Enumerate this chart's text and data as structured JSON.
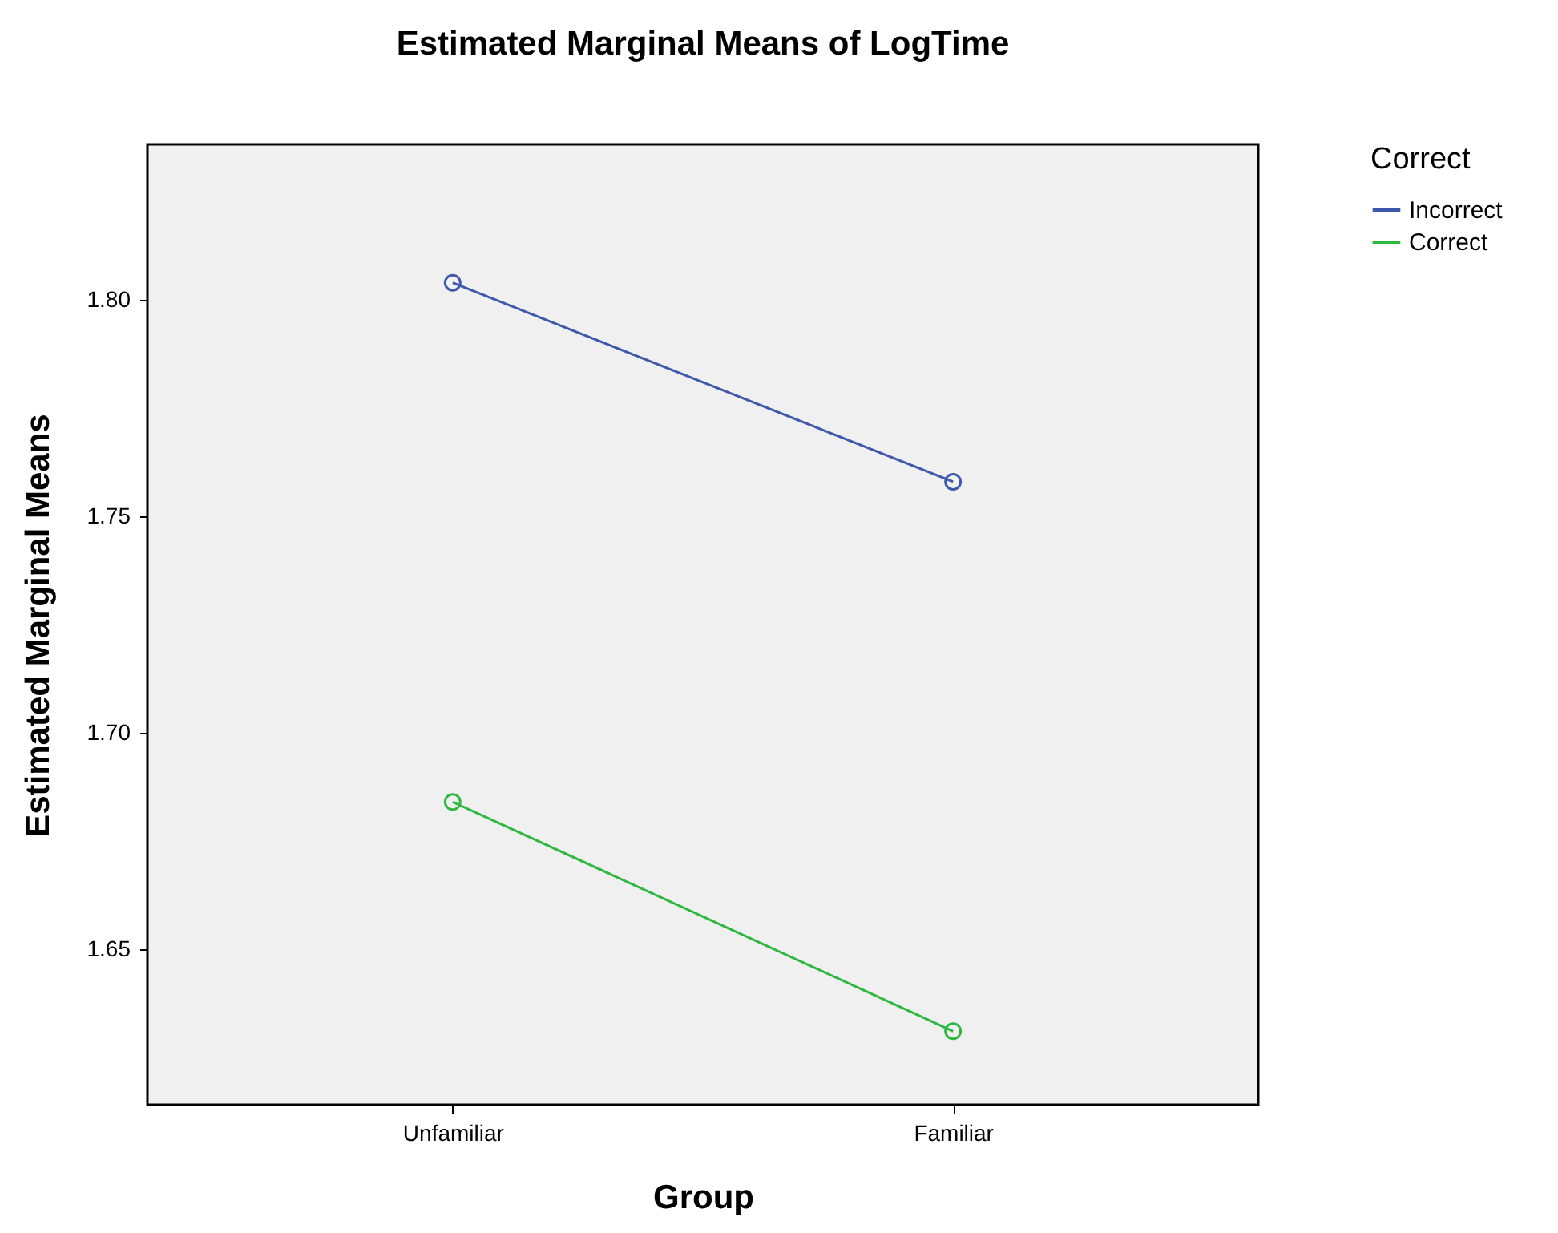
{
  "chart_data": {
    "type": "line",
    "title": "Estimated Marginal Means of LogTime",
    "xlabel": "Group",
    "ylabel": "Estimated Marginal Means",
    "legend_title": "Correct",
    "categories": [
      "Unfamiliar",
      "Familiar"
    ],
    "series": [
      {
        "name": "Incorrect",
        "color": "#3e58ac",
        "values": [
          1.804,
          1.758
        ]
      },
      {
        "name": "Correct",
        "color": "#2eb840",
        "values": [
          1.684,
          1.631
        ]
      }
    ],
    "ylim": [
      1.614,
      1.836
    ],
    "yticks": [
      {
        "value": 1.65,
        "label": "1.65"
      },
      {
        "value": 1.7,
        "label": "1.70"
      },
      {
        "value": 1.75,
        "label": "1.75"
      },
      {
        "value": 1.8,
        "label": "1.80"
      }
    ],
    "grid": false,
    "legend": "top right",
    "marker": "circle",
    "line_style": "solid"
  }
}
